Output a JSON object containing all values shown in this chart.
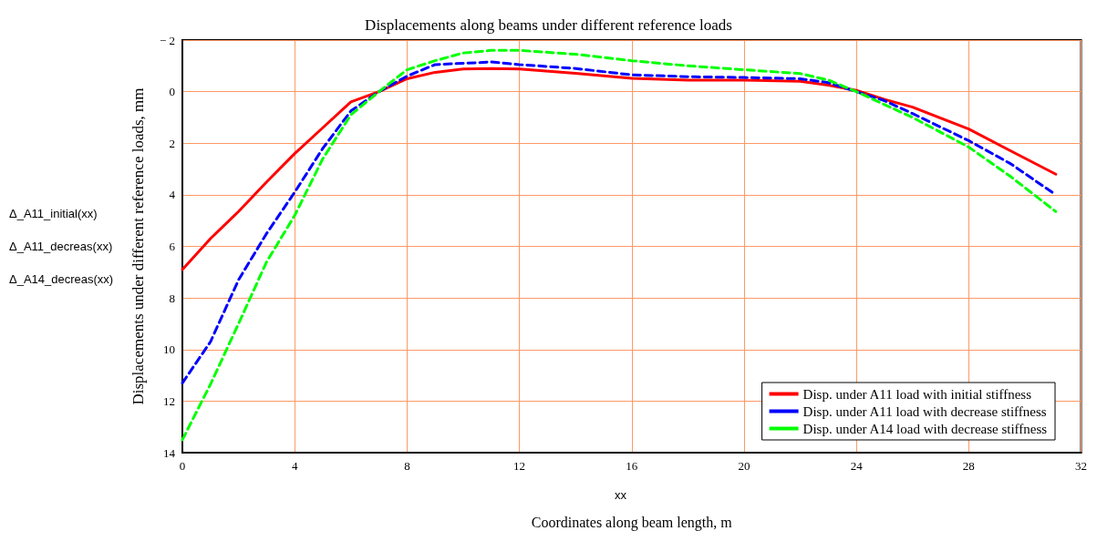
{
  "chart_data": {
    "type": "line",
    "title": "Displacements along beams under different reference loads",
    "xlabel": "Coordinates along beam length, m",
    "ylabel": "Displacements under different reference loads, mm",
    "annotations": [
      "xx",
      "Δ_A11_initial(xx)",
      "Δ_A11_decreas(xx)",
      "Δ_A14_decreas(xx)"
    ],
    "x": [
      0,
      1,
      2,
      3,
      4,
      5,
      6,
      7,
      8,
      9,
      10,
      11,
      12,
      14,
      16,
      18,
      20,
      22,
      23,
      24,
      25,
      26,
      28,
      29.5,
      31.1
    ],
    "series": [
      {
        "name": "Disp. under A11 load with initial stiffness",
        "color": "#ff0000",
        "line_style": "solid",
        "values": [
          6.9,
          5.7,
          4.65,
          3.5,
          2.4,
          1.4,
          0.4,
          0,
          -0.5,
          -0.75,
          -0.88,
          -0.9,
          -0.88,
          -0.71,
          -0.52,
          -0.45,
          -0.45,
          -0.4,
          -0.25,
          -0.05,
          0.3,
          0.6,
          1.45,
          2.3,
          3.2
        ]
      },
      {
        "name": "Disp. under A11 load with decrease stiffness",
        "color": "#0000ff",
        "line_style": "dashed",
        "values": [
          11.3,
          9.7,
          7.3,
          5.5,
          3.9,
          2.2,
          0.75,
          0,
          -0.6,
          -1.05,
          -1.1,
          -1.15,
          -1.05,
          -0.9,
          -0.65,
          -0.58,
          -0.55,
          -0.5,
          -0.35,
          0,
          0.35,
          0.85,
          1.9,
          2.8,
          4.0
        ]
      },
      {
        "name": "Disp. under A14 load with decrease stiffness",
        "color": "#00ff00",
        "line_style": "dashed",
        "values": [
          13.5,
          11.35,
          9.0,
          6.6,
          4.8,
          2.6,
          0.9,
          0,
          -0.85,
          -1.2,
          -1.5,
          -1.6,
          -1.6,
          -1.45,
          -1.2,
          -1.0,
          -0.85,
          -0.7,
          -0.45,
          0,
          0.5,
          1.0,
          2.15,
          3.3,
          4.65
        ]
      }
    ],
    "xlim": [
      0,
      32
    ],
    "xticks": [
      0,
      4,
      8,
      12,
      16,
      20,
      24,
      28,
      32
    ],
    "ylim": [
      14,
      -2
    ],
    "yticks": [
      {
        "value": -2,
        "label": "− 2"
      },
      0,
      2,
      4,
      6,
      8,
      10,
      12,
      14
    ],
    "grid": true,
    "legend": "bottom right",
    "marker": "none"
  }
}
